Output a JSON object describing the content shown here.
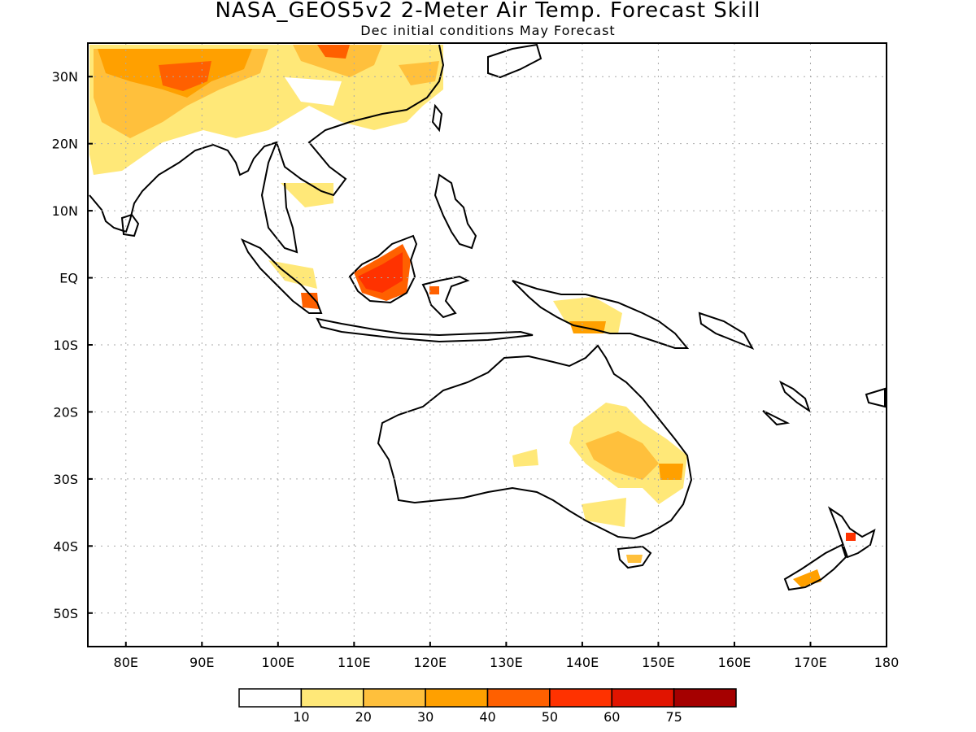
{
  "header": {
    "title": "NASA_GEOS5v2 2-Meter Air Temp. Forecast Skill",
    "subtitle": "Dec initial conditions  May Forecast"
  },
  "map": {
    "lon_range": [
      75,
      180
    ],
    "lat_range": [
      -55,
      35
    ],
    "lat_ticks": [
      {
        "v": 30,
        "label": "30N"
      },
      {
        "v": 20,
        "label": "20N"
      },
      {
        "v": 10,
        "label": "10N"
      },
      {
        "v": 0,
        "label": "EQ"
      },
      {
        "v": -10,
        "label": "10S"
      },
      {
        "v": -20,
        "label": "20S"
      },
      {
        "v": -30,
        "label": "30S"
      },
      {
        "v": -40,
        "label": "40S"
      },
      {
        "v": -50,
        "label": "50S"
      }
    ],
    "lon_ticks": [
      {
        "v": 80,
        "label": "80E"
      },
      {
        "v": 90,
        "label": "90E"
      },
      {
        "v": 100,
        "label": "100E"
      },
      {
        "v": 110,
        "label": "110E"
      },
      {
        "v": 120,
        "label": "120E"
      },
      {
        "v": 130,
        "label": "130E"
      },
      {
        "v": 140,
        "label": "140E"
      },
      {
        "v": 150,
        "label": "150E"
      },
      {
        "v": 160,
        "label": "160E"
      },
      {
        "v": 170,
        "label": "170E"
      },
      {
        "v": 180,
        "label": "180"
      }
    ],
    "grid": true
  },
  "colorbar": {
    "colors": [
      "#ffffff",
      "#ffe878",
      "#ffc03c",
      "#ffa000",
      "#ff6000",
      "#ff3200",
      "#e11400",
      "#a50000"
    ],
    "labels": [
      "10",
      "20",
      "30",
      "40",
      "50",
      "60",
      "75"
    ]
  }
}
